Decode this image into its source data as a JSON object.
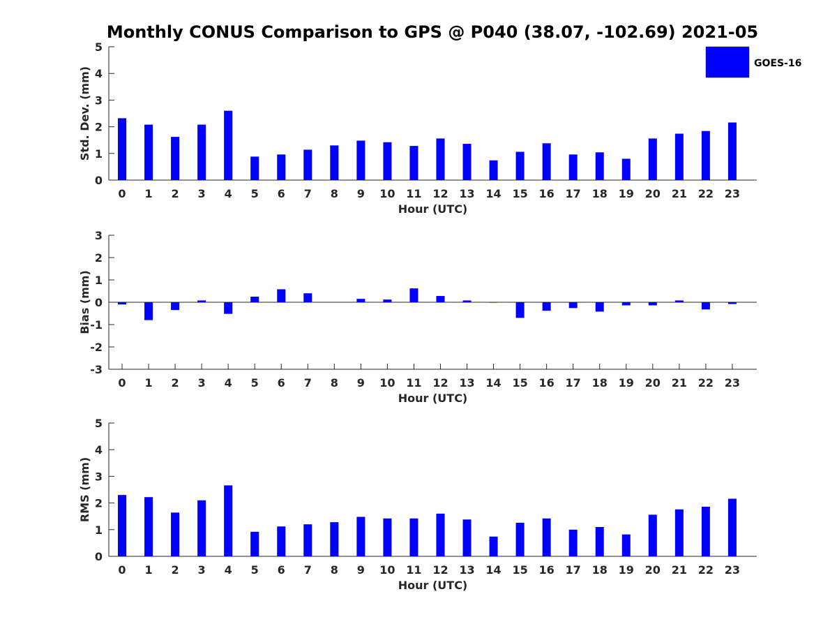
{
  "title": "Monthly CONUS Comparison to GPS @ P040 (38.07, -102.69) 2021-05",
  "legend": {
    "label": "GOES-16",
    "color": "#0000ff"
  },
  "chart_data": [
    {
      "type": "bar",
      "xlabel": "Hour (UTC)",
      "ylabel": "Std. Dev. (mm)",
      "ylim": [
        0,
        5
      ],
      "yticks": [
        0,
        1,
        2,
        3,
        4,
        5
      ],
      "categories": [
        "0",
        "1",
        "2",
        "3",
        "4",
        "5",
        "6",
        "7",
        "8",
        "9",
        "10",
        "11",
        "12",
        "13",
        "14",
        "15",
        "16",
        "17",
        "18",
        "19",
        "20",
        "21",
        "22",
        "23"
      ],
      "series": [
        {
          "name": "GOES-16",
          "values": [
            2.32,
            2.08,
            1.62,
            2.08,
            2.6,
            0.88,
            0.96,
            1.14,
            1.3,
            1.48,
            1.42,
            1.28,
            1.56,
            1.36,
            0.74,
            1.06,
            1.38,
            0.96,
            1.04,
            0.8,
            1.56,
            1.74,
            1.84,
            2.16
          ]
        }
      ]
    },
    {
      "type": "bar",
      "xlabel": "Hour (UTC)",
      "ylabel": "Bias (mm)",
      "ylim": [
        -3,
        3
      ],
      "yticks": [
        -3,
        -2,
        -1,
        0,
        1,
        2,
        3
      ],
      "categories": [
        "0",
        "1",
        "2",
        "3",
        "4",
        "5",
        "6",
        "7",
        "8",
        "9",
        "10",
        "11",
        "12",
        "13",
        "14",
        "15",
        "16",
        "17",
        "18",
        "19",
        "20",
        "21",
        "22",
        "23"
      ],
      "series": [
        {
          "name": "GOES-16",
          "values": [
            -0.1,
            -0.8,
            -0.35,
            0.08,
            -0.52,
            0.25,
            0.58,
            0.4,
            0.0,
            0.15,
            0.12,
            0.62,
            0.28,
            0.08,
            -0.02,
            -0.7,
            -0.38,
            -0.26,
            -0.42,
            -0.14,
            -0.14,
            0.08,
            -0.32,
            -0.08
          ]
        }
      ]
    },
    {
      "type": "bar",
      "xlabel": "Hour (UTC)",
      "ylabel": "RMS (mm)",
      "ylim": [
        0,
        5
      ],
      "yticks": [
        0,
        1,
        2,
        3,
        4,
        5
      ],
      "categories": [
        "0",
        "1",
        "2",
        "3",
        "4",
        "5",
        "6",
        "7",
        "8",
        "9",
        "10",
        "11",
        "12",
        "13",
        "14",
        "15",
        "16",
        "17",
        "18",
        "19",
        "20",
        "21",
        "22",
        "23"
      ],
      "series": [
        {
          "name": "GOES-16",
          "values": [
            2.3,
            2.22,
            1.64,
            2.1,
            2.66,
            0.92,
            1.12,
            1.2,
            1.28,
            1.48,
            1.42,
            1.42,
            1.6,
            1.38,
            0.74,
            1.26,
            1.42,
            1.0,
            1.1,
            0.82,
            1.56,
            1.76,
            1.86,
            2.16
          ]
        }
      ]
    }
  ]
}
